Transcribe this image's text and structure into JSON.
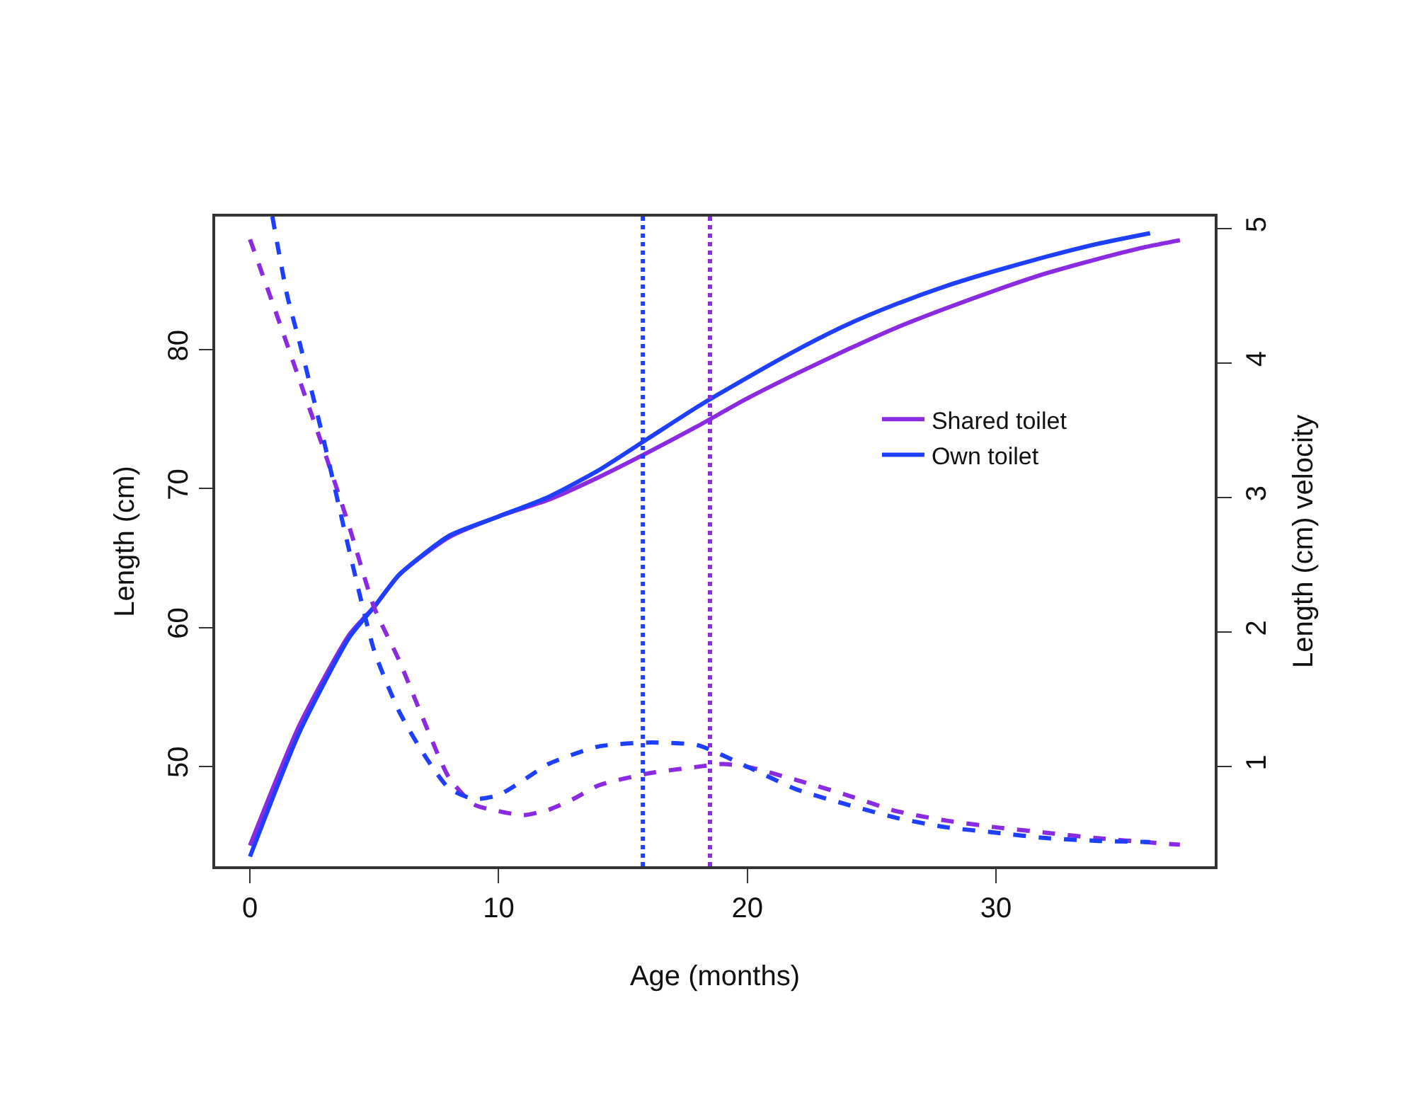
{
  "chart_data": {
    "type": "line",
    "xlabel": "Age (months)",
    "ylabel": "Length (cm)",
    "y2label": "Length (cm) velocity",
    "xlim": [
      -1.4,
      38.8
    ],
    "xticks": [
      0,
      10,
      20,
      30
    ],
    "ylim": [
      42.8,
      89.6
    ],
    "yticks": [
      50,
      60,
      70,
      80
    ],
    "y2lim": [
      0.26,
      5.09
    ],
    "y2ticks": [
      1,
      2,
      3,
      4,
      5
    ],
    "legend": "right",
    "series": [
      {
        "name": "Shared toilet",
        "color": "#8a2be2",
        "line_style": "solid",
        "x": [
          0,
          2,
          4,
          5,
          6,
          8,
          10,
          12,
          14,
          16,
          18,
          20,
          22,
          24,
          26,
          28,
          30,
          32,
          34,
          36,
          37.4
        ],
        "values": [
          44.3,
          53,
          59.5,
          61.5,
          63.8,
          66.5,
          68,
          69.2,
          70.8,
          72.6,
          74.5,
          76.5,
          78.3,
          80,
          81.6,
          83,
          84.3,
          85.5,
          86.5,
          87.4,
          87.9
        ]
      },
      {
        "name": "Own toilet",
        "color": "#1f3fff",
        "line_style": "solid",
        "x": [
          0,
          2,
          4,
          5,
          6,
          8,
          10,
          12,
          14,
          16,
          18,
          20,
          22,
          24,
          26,
          28,
          30,
          32,
          34,
          36.2
        ],
        "values": [
          43.5,
          52.5,
          59.3,
          61.5,
          63.8,
          66.6,
          68,
          69.4,
          71.3,
          73.6,
          75.9,
          78,
          80,
          81.8,
          83.3,
          84.6,
          85.7,
          86.7,
          87.6,
          88.4
        ]
      },
      {
        "color": "#8a2be2",
        "line_style": "dashed",
        "axis": "y2",
        "x": [
          0,
          1,
          2,
          3,
          4,
          5,
          6,
          7,
          8,
          9,
          10,
          11,
          12,
          13,
          14,
          16,
          18,
          19,
          20,
          22,
          24,
          26,
          28,
          30,
          32,
          34,
          36,
          37.4
        ],
        "values": [
          4.92,
          4.4,
          3.87,
          3.34,
          2.78,
          2.18,
          1.79,
          1.34,
          0.92,
          0.72,
          0.67,
          0.64,
          0.68,
          0.76,
          0.86,
          0.95,
          1.0,
          1.02,
          1.0,
          0.9,
          0.79,
          0.67,
          0.6,
          0.55,
          0.51,
          0.47,
          0.44,
          0.42
        ]
      },
      {
        "color": "#1f3fff",
        "line_style": "dashed",
        "axis": "y2",
        "x": [
          0.9,
          1.5,
          2,
          3,
          4,
          5,
          6,
          7,
          8,
          9,
          10,
          11,
          12,
          14,
          16,
          18,
          20,
          22,
          24,
          26,
          28,
          30,
          32,
          34,
          36.2
        ],
        "values": [
          5.09,
          4.5,
          4.15,
          3.4,
          2.6,
          1.86,
          1.41,
          1.09,
          0.84,
          0.76,
          0.79,
          0.9,
          1.02,
          1.15,
          1.18,
          1.16,
          1.0,
          0.83,
          0.72,
          0.62,
          0.55,
          0.51,
          0.47,
          0.45,
          0.44
        ]
      }
    ],
    "ref_lines": [
      {
        "axis": "x",
        "value": 15.8,
        "color": "#1f3fff",
        "line_style": "dotted"
      },
      {
        "axis": "x",
        "value": 18.5,
        "color": "#8a2be2",
        "line_style": "dotted"
      }
    ]
  }
}
